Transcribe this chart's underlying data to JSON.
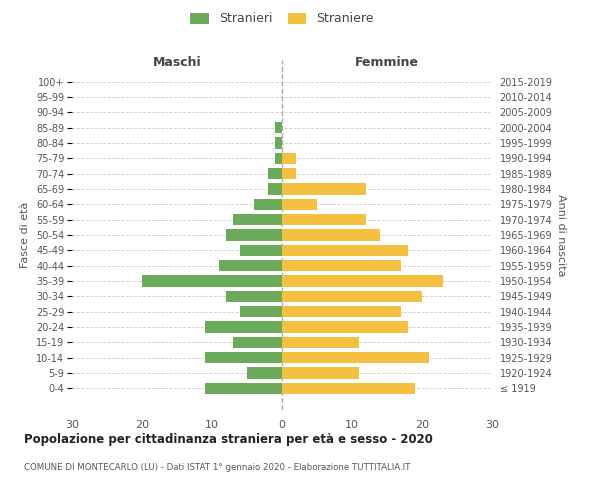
{
  "age_groups": [
    "100+",
    "95-99",
    "90-94",
    "85-89",
    "80-84",
    "75-79",
    "70-74",
    "65-69",
    "60-64",
    "55-59",
    "50-54",
    "45-49",
    "40-44",
    "35-39",
    "30-34",
    "25-29",
    "20-24",
    "15-19",
    "10-14",
    "5-9",
    "0-4"
  ],
  "birth_years": [
    "≤ 1919",
    "1920-1924",
    "1925-1929",
    "1930-1934",
    "1935-1939",
    "1940-1944",
    "1945-1949",
    "1950-1954",
    "1955-1959",
    "1960-1964",
    "1965-1969",
    "1970-1974",
    "1975-1979",
    "1980-1984",
    "1985-1989",
    "1990-1994",
    "1995-1999",
    "2000-2004",
    "2005-2009",
    "2010-2014",
    "2015-2019"
  ],
  "males": [
    0,
    0,
    0,
    1,
    1,
    1,
    2,
    2,
    4,
    7,
    8,
    6,
    9,
    20,
    8,
    6,
    11,
    7,
    11,
    5,
    11
  ],
  "females": [
    0,
    0,
    0,
    0,
    0,
    2,
    2,
    12,
    5,
    12,
    14,
    18,
    17,
    23,
    20,
    17,
    18,
    11,
    21,
    11,
    19
  ],
  "male_color": "#6aaa5a",
  "female_color": "#f5c040",
  "grid_color": "#cccccc",
  "title": "Popolazione per cittadinanza straniera per età e sesso - 2020",
  "subtitle": "COMUNE DI MONTECARLO (LU) - Dati ISTAT 1° gennaio 2020 - Elaborazione TUTTITALIA.IT",
  "xlabel_left": "Maschi",
  "xlabel_right": "Femmine",
  "ylabel_left": "Fasce di età",
  "ylabel_right": "Anni di nascita",
  "legend_male": "Stranieri",
  "legend_female": "Straniere",
  "xlim": 30,
  "bar_height": 0.75
}
